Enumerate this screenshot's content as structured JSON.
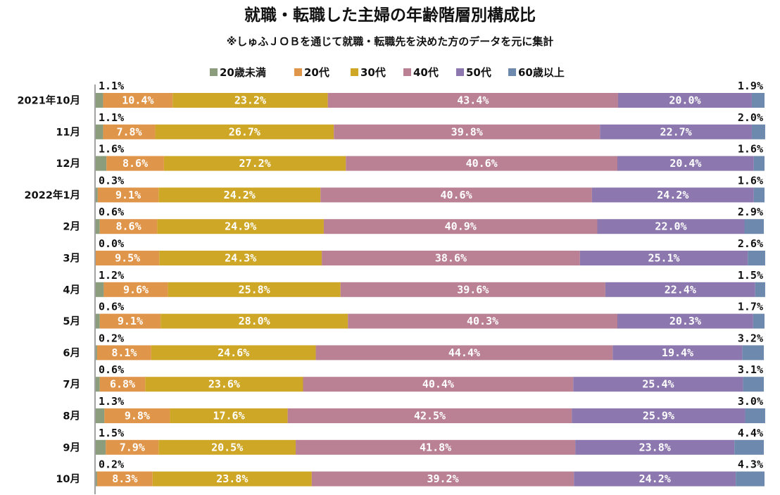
{
  "chart_data": {
    "type": "bar",
    "orientation": "horizontal",
    "stacked": true,
    "percent": true,
    "title": "就職・転職した主婦の年齢階層別構成比",
    "subtitle": "※しゅふＪＯＢを通じて就職・転職先を決めた方のデータを元に集計",
    "xlim": [
      0,
      100
    ],
    "legend_position": "top",
    "grid": false,
    "categories": [
      "2021年10月",
      "11月",
      "12月",
      "2022年1月",
      "2月",
      "3月",
      "4月",
      "5月",
      "6月",
      "7月",
      "8月",
      "9月",
      "10月"
    ],
    "series": [
      {
        "name": "20歳未満",
        "color": "#8c9d7e",
        "values": [
          1.1,
          1.1,
          1.6,
          0.3,
          0.6,
          0.0,
          1.2,
          0.6,
          0.2,
          0.6,
          1.3,
          1.5,
          0.2
        ]
      },
      {
        "name": "20代",
        "color": "#e0964a",
        "values": [
          10.4,
          7.8,
          8.6,
          9.1,
          8.6,
          9.5,
          9.6,
          9.1,
          8.1,
          6.8,
          9.8,
          7.9,
          8.3
        ]
      },
      {
        "name": "30代",
        "color": "#cfa727",
        "values": [
          23.2,
          26.7,
          27.2,
          24.2,
          24.9,
          24.3,
          25.8,
          28.0,
          24.6,
          23.6,
          17.6,
          20.5,
          23.8
        ]
      },
      {
        "name": "40代",
        "color": "#b98193",
        "values": [
          43.4,
          39.8,
          40.6,
          40.6,
          40.9,
          38.6,
          39.6,
          40.3,
          44.4,
          40.4,
          42.5,
          41.8,
          39.2
        ]
      },
      {
        "name": "50代",
        "color": "#8c77ae",
        "values": [
          20.0,
          22.7,
          20.4,
          24.2,
          22.0,
          25.1,
          22.4,
          20.3,
          19.4,
          25.4,
          25.9,
          23.8,
          24.2
        ]
      },
      {
        "name": "60歳以上",
        "color": "#6d89ad",
        "values": [
          1.9,
          2.0,
          1.6,
          1.6,
          2.9,
          2.6,
          1.5,
          1.7,
          3.2,
          3.1,
          3.0,
          4.4,
          4.3
        ]
      }
    ],
    "value_labels": {
      "20歳未満": [
        "1.1%",
        "1.1%",
        "1.6%",
        "0.3%",
        "0.6%",
        "0.0%",
        "1.2%",
        "0.6%",
        "0.2%",
        "0.6%",
        "1.3%",
        "1.5%",
        "0.2%"
      ],
      "20代": [
        "10.4%",
        "7.8%",
        "8.6%",
        "9.1%",
        "8.6%",
        "9.5%",
        "9.6%",
        "9.1%",
        "8.1%",
        "6.8%",
        "9.8%",
        "7.9%",
        "8.3%"
      ],
      "30代": [
        "23.2%",
        "26.7%",
        "27.2%",
        "24.2%",
        "24.9%",
        "24.3%",
        "25.8%",
        "28.0%",
        "24.6%",
        "23.6%",
        "17.6%",
        "20.5%",
        "23.8%"
      ],
      "40代": [
        "43.4%",
        "39.8%",
        "40.6%",
        "40.6%",
        "40.9%",
        "38.6%",
        "39.6%",
        "40.3%",
        "44.4%",
        "40.4%",
        "42.5%",
        "41.8%",
        "39.2%"
      ],
      "50代": [
        "20.0%",
        "22.7%",
        "20.4%",
        "24.2%",
        "22.0%",
        "25.1%",
        "22.4%",
        "20.3%",
        "19.4%",
        "25.4%",
        "25.9%",
        "23.8%",
        "24.2%"
      ],
      "60歳以上": [
        "1.9%",
        "2.0%",
        "1.6%",
        "1.6%",
        "2.9%",
        "2.6%",
        "1.5%",
        "1.7%",
        "3.2%",
        "3.1%",
        "3.0%",
        "4.4%",
        "4.3%"
      ]
    }
  }
}
